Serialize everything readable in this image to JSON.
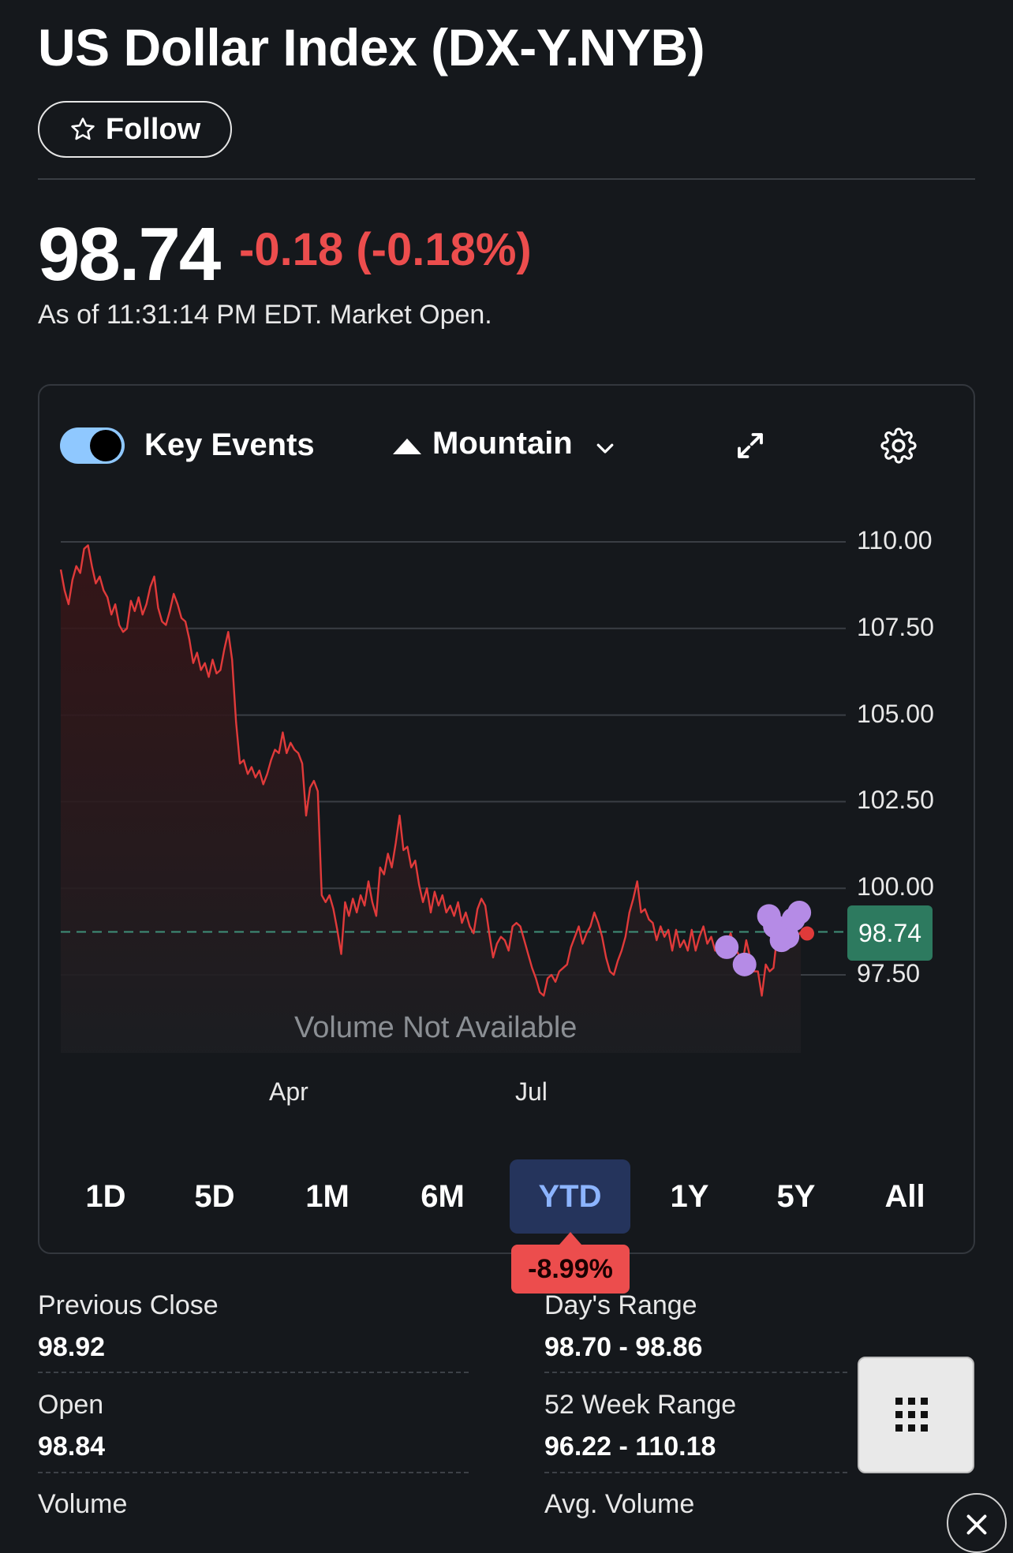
{
  "header": {
    "title": "US Dollar Index (DX-Y.NYB)",
    "follow_label": "Follow"
  },
  "quote": {
    "price": "98.74",
    "change": "-0.18 (-0.18%)",
    "as_of": "As of 11:31:14 PM EDT. Market Open."
  },
  "chart_controls": {
    "key_events_label": "Key Events",
    "key_events_on": true,
    "chart_type_label": "Mountain",
    "icons": [
      "toggle-switch",
      "mountain-icon",
      "chevron-down-icon",
      "expand-icon",
      "gear-icon"
    ]
  },
  "chart_data": {
    "type": "area",
    "y_ticks": [
      "110.00",
      "107.50",
      "105.00",
      "102.50",
      "100.00",
      "97.50"
    ],
    "x_ticks": [
      "Apr",
      "Jul"
    ],
    "ylim": [
      95.5,
      110.5
    ],
    "line_color": "#e03a3a",
    "current_value": 98.74,
    "current_label": "98.74",
    "volume_note": "Volume Not Available",
    "values": [
      109.2,
      108.6,
      108.2,
      108.9,
      109.3,
      109.1,
      109.8,
      109.9,
      109.3,
      108.8,
      109.0,
      108.6,
      108.4,
      107.9,
      108.2,
      107.6,
      107.4,
      107.5,
      108.3,
      108.0,
      108.4,
      107.9,
      108.2,
      108.7,
      109.0,
      108.1,
      107.7,
      107.6,
      108.0,
      108.5,
      108.2,
      107.8,
      107.7,
      107.2,
      106.5,
      106.8,
      106.3,
      106.5,
      106.1,
      106.6,
      106.2,
      106.3,
      106.9,
      107.4,
      106.6,
      104.8,
      103.6,
      103.7,
      103.3,
      103.5,
      103.2,
      103.4,
      103.0,
      103.3,
      103.7,
      104.0,
      103.9,
      104.5,
      103.9,
      104.2,
      104.0,
      103.9,
      103.6,
      102.1,
      102.9,
      103.1,
      102.8,
      99.8,
      99.6,
      99.8,
      99.4,
      98.8,
      98.1,
      99.6,
      99.2,
      99.7,
      99.3,
      99.8,
      99.5,
      100.2,
      99.6,
      99.2,
      100.6,
      100.4,
      101.0,
      100.6,
      101.3,
      102.1,
      101.1,
      101.2,
      100.6,
      100.8,
      100.1,
      99.6,
      100.0,
      99.3,
      99.9,
      99.5,
      99.8,
      99.3,
      99.5,
      99.2,
      99.6,
      99.0,
      99.3,
      98.9,
      98.7,
      99.4,
      99.7,
      99.5,
      98.7,
      98.0,
      98.4,
      98.6,
      98.5,
      98.2,
      98.9,
      99.0,
      98.9,
      98.5,
      98.1,
      97.7,
      97.4,
      97.0,
      96.9,
      97.4,
      97.5,
      97.3,
      97.6,
      97.7,
      97.8,
      98.3,
      98.6,
      98.9,
      98.4,
      98.7,
      98.9,
      99.3,
      99.0,
      98.6,
      98.0,
      97.6,
      97.5,
      97.9,
      98.2,
      98.6,
      99.3,
      99.7,
      100.2,
      99.3,
      99.4,
      99.1,
      99.0,
      98.5,
      98.9,
      98.6,
      98.8,
      98.2,
      98.8,
      98.3,
      98.5,
      98.2,
      98.8,
      98.2,
      98.6,
      98.9,
      98.4,
      98.6,
      98.2,
      98.3,
      98.0,
      98.4,
      98.7,
      98.3,
      98.1,
      97.8,
      98.5,
      98.0,
      97.6,
      97.6,
      96.9,
      97.8,
      97.6,
      97.7,
      98.7,
      98.5,
      98.3,
      98.5,
      98.9,
      98.6,
      98.74
    ],
    "key_events": [
      [
        0.9,
        98.3
      ],
      [
        0.924,
        97.8
      ],
      [
        0.957,
        99.2
      ],
      [
        0.965,
        98.9
      ],
      [
        0.974,
        98.5
      ],
      [
        0.982,
        98.6
      ],
      [
        0.99,
        99.1
      ],
      [
        0.998,
        99.3
      ]
    ]
  },
  "ranges": {
    "items": [
      "1D",
      "5D",
      "1M",
      "6M",
      "YTD",
      "1Y",
      "5Y",
      "All"
    ],
    "active": "YTD",
    "active_change": "-8.99%"
  },
  "stats": {
    "previous_close_label": "Previous Close",
    "previous_close": "98.92",
    "days_range_label": "Day's Range",
    "days_range": "98.70 - 98.86",
    "open_label": "Open",
    "open": "98.84",
    "week52_label": "52 Week Range",
    "week52": "96.22 - 110.18",
    "volume_label": "Volume",
    "avg_volume_label": "Avg. Volume"
  }
}
